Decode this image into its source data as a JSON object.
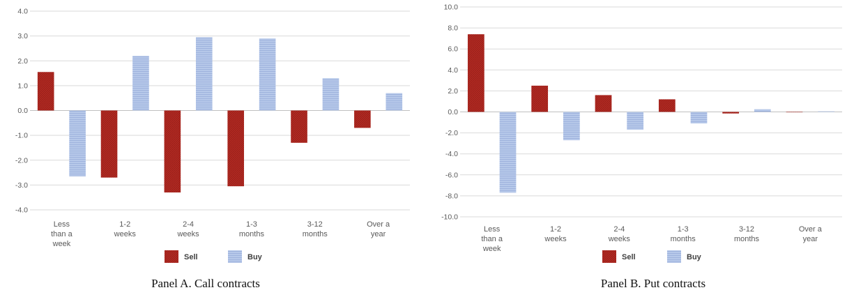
{
  "colors": {
    "sell": "#b22a22",
    "buy": "#a9bde3",
    "grid": "#d9d9d9"
  },
  "chart_data": [
    {
      "type": "bar",
      "caption": "Panel A. Call contracts",
      "categories": [
        [
          "Less",
          "than a",
          "week"
        ],
        [
          "1-2",
          "weeks"
        ],
        [
          "2-4",
          "weeks"
        ],
        [
          "1-3",
          "months"
        ],
        [
          "3-12",
          "months"
        ],
        [
          "Over a",
          "year"
        ]
      ],
      "ylim": [
        -4.0,
        4.0
      ],
      "yticks": [
        "4.0",
        "3.0",
        "2.0",
        "1.0",
        "0.0",
        "-1.0",
        "-2.0",
        "-3.0",
        "-4.0"
      ],
      "ytick_values": [
        4,
        3,
        2,
        1,
        0,
        -1,
        -2,
        -3,
        -4
      ],
      "legend": [
        "Sell",
        "Buy"
      ],
      "series": [
        {
          "name": "Sell",
          "values": [
            1.55,
            -2.7,
            -3.3,
            -3.05,
            -1.3,
            -0.7
          ]
        },
        {
          "name": "Buy",
          "values": [
            -2.65,
            2.2,
            2.95,
            2.9,
            1.3,
            0.7
          ]
        }
      ]
    },
    {
      "type": "bar",
      "caption": "Panel B. Put contracts",
      "categories": [
        [
          "Less",
          "than a",
          "week"
        ],
        [
          "1-2",
          "weeks"
        ],
        [
          "2-4",
          "weeks"
        ],
        [
          "1-3",
          "months"
        ],
        [
          "3-12",
          "months"
        ],
        [
          "Over a",
          "year"
        ]
      ],
      "ylim": [
        -10.0,
        10.0
      ],
      "yticks": [
        "10.0",
        "8.0",
        "6.0",
        "4.0",
        "2.0",
        "0.0",
        "-2.0",
        "-4.0",
        "-6.0",
        "-8.0",
        "-10.0"
      ],
      "ytick_values": [
        10,
        8,
        6,
        4,
        2,
        0,
        -2,
        -4,
        -6,
        -8,
        -10
      ],
      "legend": [
        "Sell",
        "Buy"
      ],
      "series": [
        {
          "name": "Sell",
          "values": [
            7.4,
            2.5,
            1.6,
            1.2,
            -0.15,
            0.0
          ]
        },
        {
          "name": "Buy",
          "values": [
            -7.7,
            -2.7,
            -1.7,
            -1.1,
            0.25,
            0.05
          ]
        }
      ]
    }
  ]
}
